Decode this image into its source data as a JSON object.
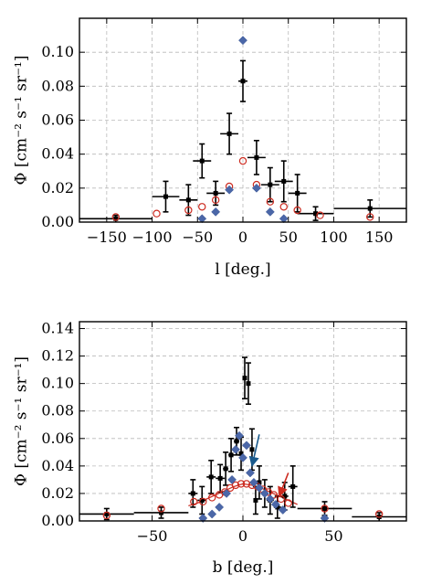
{
  "chart_data": [
    {
      "type": "scatter",
      "xlabel": "l [deg.]",
      "ylabel": "Φ [cm⁻² s⁻¹ sr⁻¹]",
      "xlim": [
        -180,
        180
      ],
      "ylim": [
        0,
        0.12
      ],
      "xticks": [
        -150,
        -100,
        -50,
        0,
        50,
        100,
        150
      ],
      "yticks": [
        0.0,
        0.02,
        0.04,
        0.06,
        0.08,
        0.1
      ],
      "ytick_labels": [
        "0.00",
        "0.02",
        "0.04",
        "0.06",
        "0.08",
        "0.10"
      ],
      "grid": true,
      "series": [
        {
          "marker": "errorbar",
          "color": "#000000",
          "points": [
            {
              "x": -140,
              "xerr": 40,
              "y": 0.002,
              "yerr": 0.002
            },
            {
              "x": -85,
              "xerr": 15,
              "y": 0.015,
              "yerr": 0.009
            },
            {
              "x": -60,
              "xerr": 10,
              "y": 0.013,
              "yerr": 0.009
            },
            {
              "x": -45,
              "xerr": 10,
              "y": 0.036,
              "yerr": 0.01
            },
            {
              "x": -30,
              "xerr": 10,
              "y": 0.017,
              "yerr": 0.007
            },
            {
              "x": -15,
              "xerr": 10,
              "y": 0.052,
              "yerr": 0.012
            },
            {
              "x": 0,
              "xerr": 5,
              "y": 0.083,
              "yerr": 0.012
            },
            {
              "x": 15,
              "xerr": 10,
              "y": 0.038,
              "yerr": 0.01
            },
            {
              "x": 30,
              "xerr": 10,
              "y": 0.022,
              "yerr": 0.01
            },
            {
              "x": 45,
              "xerr": 10,
              "y": 0.024,
              "yerr": 0.012
            },
            {
              "x": 60,
              "xerr": 10,
              "y": 0.017,
              "yerr": 0.011
            },
            {
              "x": 80,
              "xerr": 20,
              "y": 0.005,
              "yerr": 0.004
            },
            {
              "x": 140,
              "xerr": 40,
              "y": 0.008,
              "yerr": 0.005
            }
          ]
        },
        {
          "marker": "open-circle",
          "color": "#cc2a1f",
          "points": [
            {
              "x": -140,
              "y": 0.003
            },
            {
              "x": -95,
              "y": 0.005
            },
            {
              "x": -60,
              "y": 0.007
            },
            {
              "x": -45,
              "y": 0.009
            },
            {
              "x": -30,
              "y": 0.013
            },
            {
              "x": -15,
              "y": 0.021
            },
            {
              "x": 0,
              "y": 0.036
            },
            {
              "x": 15,
              "y": 0.022
            },
            {
              "x": 30,
              "y": 0.012
            },
            {
              "x": 45,
              "y": 0.009
            },
            {
              "x": 60,
              "y": 0.007
            },
            {
              "x": 85,
              "y": 0.004
            },
            {
              "x": 140,
              "y": 0.003
            }
          ]
        },
        {
          "marker": "diamond",
          "color": "#4b67a8",
          "points": [
            {
              "x": -45,
              "y": 0.002
            },
            {
              "x": -30,
              "y": 0.006
            },
            {
              "x": -15,
              "y": 0.019
            },
            {
              "x": 0,
              "y": 0.107
            },
            {
              "x": 15,
              "y": 0.02
            },
            {
              "x": 30,
              "y": 0.006
            },
            {
              "x": 45,
              "y": 0.002
            }
          ]
        }
      ]
    },
    {
      "type": "scatter",
      "xlabel": "b [deg.]",
      "ylabel": "Φ [cm⁻² s⁻¹ sr⁻¹]",
      "xlim": [
        -90,
        90
      ],
      "ylim": [
        0,
        0.145
      ],
      "xticks": [
        -50,
        0,
        50
      ],
      "yticks": [
        0.0,
        0.02,
        0.04,
        0.06,
        0.08,
        0.1,
        0.12,
        0.14
      ],
      "ytick_labels": [
        "0.00",
        "0.02",
        "0.04",
        "0.06",
        "0.08",
        "0.10",
        "0.12",
        "0.14"
      ],
      "grid": true,
      "series": [
        {
          "marker": "errorbar",
          "color": "#000000",
          "points": [
            {
              "x": -75,
              "xerr": 15,
              "y": 0.005,
              "yerr": 0.004
            },
            {
              "x": -45,
              "xerr": 15,
              "y": 0.006,
              "yerr": 0.004
            },
            {
              "x": -27.5,
              "xerr": 2.5,
              "y": 0.02,
              "yerr": 0.01
            },
            {
              "x": -22.5,
              "xerr": 2.5,
              "y": 0.015,
              "yerr": 0.01
            },
            {
              "x": -17.5,
              "xerr": 2.5,
              "y": 0.032,
              "yerr": 0.012
            },
            {
              "x": -12.5,
              "xerr": 2.5,
              "y": 0.031,
              "yerr": 0.01
            },
            {
              "x": -9.5,
              "xerr": 1.5,
              "y": 0.038,
              "yerr": 0.012
            },
            {
              "x": -6.5,
              "xerr": 1.5,
              "y": 0.048,
              "yerr": 0.012
            },
            {
              "x": -3.5,
              "xerr": 1.5,
              "y": 0.058,
              "yerr": 0.01
            },
            {
              "x": -1,
              "xerr": 1,
              "y": 0.049,
              "yerr": 0.012
            },
            {
              "x": 1,
              "xerr": 1,
              "y": 0.104,
              "yerr": 0.015
            },
            {
              "x": 3,
              "xerr": 1,
              "y": 0.1,
              "yerr": 0.015
            },
            {
              "x": 5,
              "xerr": 1,
              "y": 0.052,
              "yerr": 0.015
            },
            {
              "x": 7,
              "xerr": 1,
              "y": 0.015,
              "yerr": 0.01
            },
            {
              "x": 9,
              "xerr": 1,
              "y": 0.028,
              "yerr": 0.012
            },
            {
              "x": 12,
              "xerr": 2,
              "y": 0.02,
              "yerr": 0.01
            },
            {
              "x": 15,
              "xerr": 2,
              "y": 0.015,
              "yerr": 0.01
            },
            {
              "x": 19,
              "xerr": 2,
              "y": 0.01,
              "yerr": 0.008
            },
            {
              "x": 23,
              "xerr": 2,
              "y": 0.018,
              "yerr": 0.01
            },
            {
              "x": 27.5,
              "xerr": 2.5,
              "y": 0.025,
              "yerr": 0.015
            },
            {
              "x": 45,
              "xerr": 15,
              "y": 0.009,
              "yerr": 0.005
            },
            {
              "x": 75,
              "xerr": 15,
              "y": 0.003,
              "yerr": 0.003
            }
          ]
        },
        {
          "marker": "open-circle",
          "color": "#cc2a1f",
          "points": [
            {
              "x": -75,
              "y": 0.004
            },
            {
              "x": -45,
              "y": 0.009
            },
            {
              "x": -27,
              "y": 0.014
            },
            {
              "x": -22,
              "y": 0.014
            },
            {
              "x": -17,
              "y": 0.017
            },
            {
              "x": -13,
              "y": 0.019
            },
            {
              "x": -10,
              "y": 0.021
            },
            {
              "x": -7,
              "y": 0.024
            },
            {
              "x": -4,
              "y": 0.026
            },
            {
              "x": -1,
              "y": 0.027
            },
            {
              "x": 2,
              "y": 0.027
            },
            {
              "x": 5,
              "y": 0.026
            },
            {
              "x": 8,
              "y": 0.025
            },
            {
              "x": 11,
              "y": 0.023
            },
            {
              "x": 14,
              "y": 0.021
            },
            {
              "x": 17,
              "y": 0.019
            },
            {
              "x": 21,
              "y": 0.016
            },
            {
              "x": 25,
              "y": 0.013
            },
            {
              "x": 45,
              "y": 0.009
            },
            {
              "x": 75,
              "y": 0.005
            }
          ]
        },
        {
          "marker": "diamond",
          "color": "#4b67a8",
          "points": [
            {
              "x": -22,
              "y": 0.002
            },
            {
              "x": -17,
              "y": 0.005
            },
            {
              "x": -13,
              "y": 0.01
            },
            {
              "x": -9,
              "y": 0.02
            },
            {
              "x": -6,
              "y": 0.03
            },
            {
              "x": -4,
              "y": 0.052
            },
            {
              "x": -2,
              "y": 0.062
            },
            {
              "x": 0,
              "y": 0.046
            },
            {
              "x": 2,
              "y": 0.055
            },
            {
              "x": 4,
              "y": 0.035
            },
            {
              "x": 6,
              "y": 0.028
            },
            {
              "x": 9,
              "y": 0.024
            },
            {
              "x": 12,
              "y": 0.02
            },
            {
              "x": 15,
              "y": 0.016
            },
            {
              "x": 18,
              "y": 0.012
            },
            {
              "x": 22,
              "y": 0.008
            },
            {
              "x": 45,
              "y": 0.002
            }
          ]
        }
      ],
      "model_curve": {
        "color": "#cc2a1f",
        "x": [
          -30,
          -25,
          -20,
          -15,
          -10,
          -5,
          0,
          5,
          10,
          15,
          20,
          25,
          30
        ],
        "y": [
          0.011,
          0.013,
          0.016,
          0.019,
          0.022,
          0.025,
          0.027,
          0.026,
          0.024,
          0.021,
          0.018,
          0.015,
          0.012
        ]
      },
      "arrows": [
        {
          "color": "#1a5a8c",
          "from": [
            9,
            0.063
          ],
          "to": [
            5,
            0.04
          ]
        },
        {
          "color": "#cc2a1f",
          "from": [
            25,
            0.035
          ],
          "to": [
            20,
            0.018
          ]
        }
      ]
    }
  ]
}
